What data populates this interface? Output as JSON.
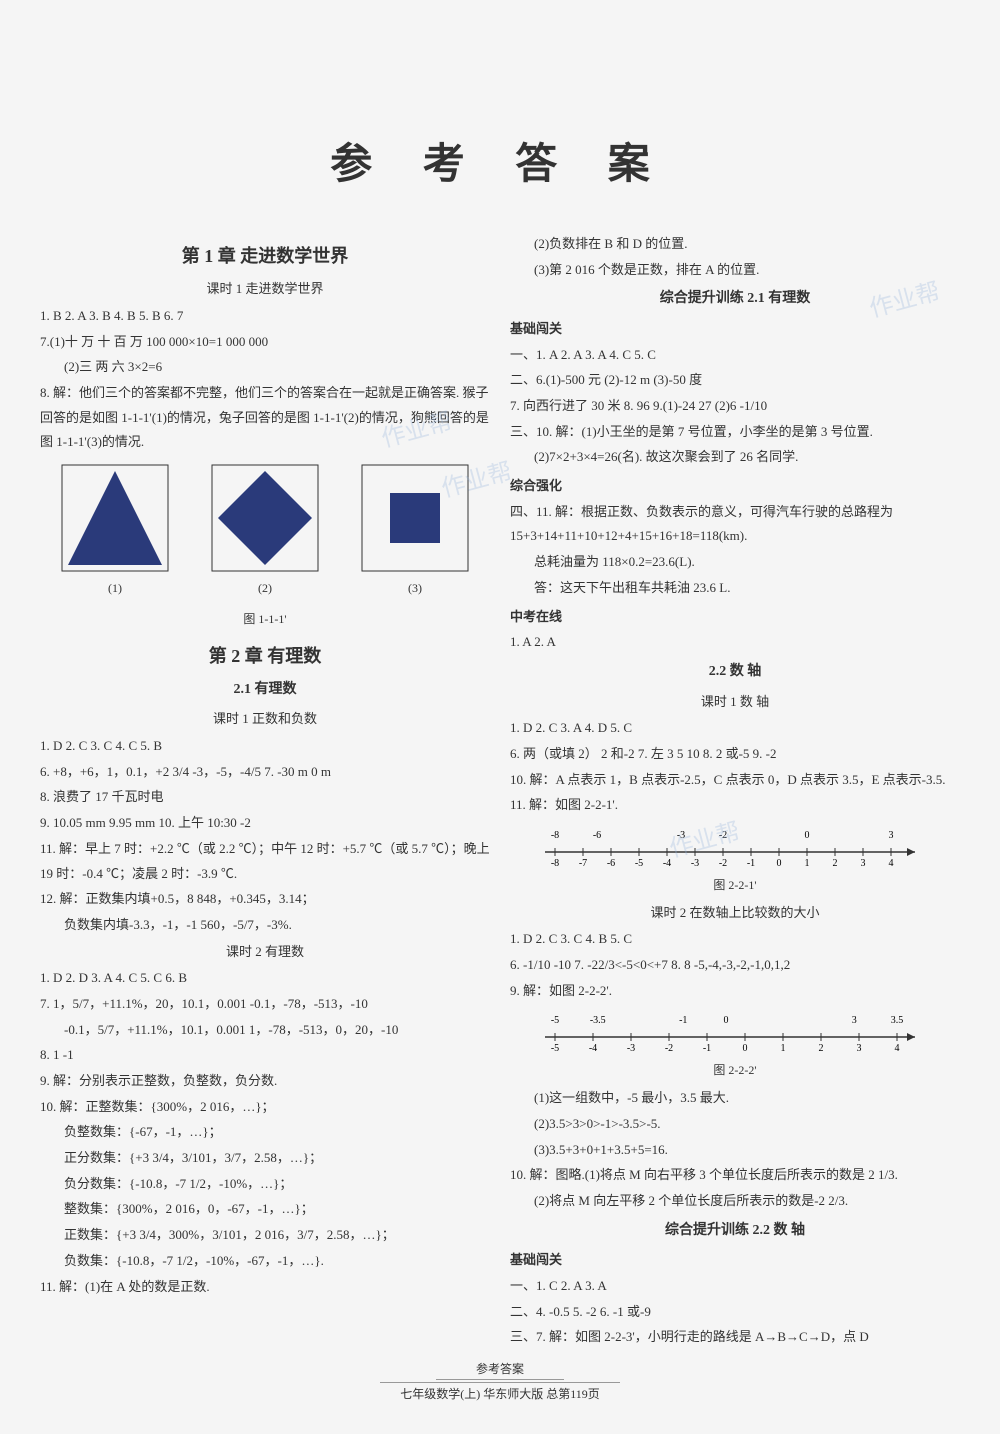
{
  "mainTitle": "参 考 答 案",
  "left": {
    "chapter1": {
      "title": "第 1 章  走进数学世界",
      "lesson": "课时 1  走进数学世界",
      "lines": [
        "1. B  2. A  3. B  4. B  5. B  6. 7",
        "7.(1)十  万  十  百  万  100 000×10=1 000 000",
        "(2)三  两  六  3×2=6",
        "8. 解：他们三个的答案都不完整，他们三个的答案合在一起就是正确答案. 猴子回答的是如图 1-1-1'(1)的情况，兔子回答的是图 1-1-1'(2)的情况，狗熊回答的是图 1-1-1'(3)的情况."
      ],
      "figLabels": [
        "(1)",
        "(2)",
        "(3)"
      ],
      "figCaption": "图 1-1-1'"
    },
    "chapter2": {
      "title": "第 2 章  有理数",
      "section21": "2.1  有理数",
      "lesson1": {
        "title": "课时 1  正数和负数",
        "lines": [
          "1. D  2. C  3. C  4. C  5. B",
          "6. +8，+6，1，0.1，+2 3/4  -3，-5，-4/5  7. -30 m  0 m",
          "8. 浪费了 17 千瓦时电",
          "9. 10.05 mm  9.95 mm  10. 上午 10:30  -2",
          "11. 解：早上 7 时：+2.2 ℃（或 2.2 ℃）；中午 12 时：+5.7 ℃（或 5.7 ℃）；晚上 19 时：-0.4 ℃；凌晨 2 时：-3.9 ℃.",
          "12. 解：正数集内填+0.5，8 848，+0.345，3.14；",
          "负数集内填-3.3，-1，-1 560，-5/7，-3%."
        ]
      },
      "lesson2": {
        "title": "课时 2  有理数",
        "lines": [
          "1. D  2. D  3. A  4. C  5. C  6. B",
          "7. 1，5/7，+11.1%，20，10.1，0.001  -0.1，-78，-513，-10",
          "-0.1，5/7，+11.1%，10.1，0.001  1，-78，-513，0，20，-10",
          "8. 1  -1",
          "9. 解：分别表示正整数，负整数，负分数.",
          "10. 解：正整数集：{300%，2 016，…}；",
          "负整数集：{-67，-1，…}；",
          "正分数集：{+3 3/4，3/101，3/7，2.58，…}；",
          "负分数集：{-10.8，-7 1/2，-10%，…}；",
          "整数集：{300%，2 016，0，-67，-1，…}；",
          "正数集：{+3 3/4，300%，3/101，2 016，3/7，2.58，…}；",
          "负数集：{-10.8，-7 1/2，-10%，-67，-1，…}.",
          "11. 解：(1)在 A 处的数是正数."
        ]
      }
    }
  },
  "right": {
    "topLines": [
      "(2)负数排在 B 和 D 的位置.",
      "(3)第 2 016 个数是正数，排在 A 的位置."
    ],
    "comp21": {
      "title": "综合提升训练  2.1 有理数",
      "h1": "基础闯关",
      "lines1": [
        "一、1. A  2. A  3. A  4. C  5. C",
        "二、6.(1)-500 元  (2)-12 m  (3)-50 度",
        "7. 向西行进了 30 米  8. 96  9.(1)-24  27  (2)6  -1/10",
        "三、10. 解：(1)小王坐的是第 7 号位置，小李坐的是第 3 号位置.",
        "(2)7×2+3×4=26(名). 故这次聚会到了 26 名同学."
      ],
      "h2": "综合强化",
      "lines2": [
        "四、11. 解：根据正数、负数表示的意义，可得汽车行驶的总路程为 15+3+14+11+10+12+4+15+16+18=118(km).",
        "总耗油量为 118×0.2=23.6(L).",
        "答：这天下午出租车共耗油 23.6 L."
      ],
      "h3": "中考在线",
      "lines3": [
        "1. A  2. A"
      ]
    },
    "section22": {
      "title": "2.2  数  轴",
      "lesson1": {
        "title": "课时 1  数  轴",
        "lines": [
          "1. D  2. C  3. A  4. D  5. C",
          "6. 两（或填 2）  2 和-2  7. 左  3  5  10  8. 2 或-5  9. -2",
          "10. 解：A 点表示 1，B 点表示-2.5，C 点表示 0，D 点表示 3.5，E 点表示-3.5.",
          "11. 解：如图 2-2-1'."
        ],
        "figCaption": "图 2-2-1'",
        "nlTop": [
          "-8",
          "-6",
          "",
          "-3",
          "-2",
          "",
          "0",
          "",
          "3"
        ],
        "nlBottom": [
          "-8",
          "-7",
          "-6",
          "-5",
          "-4",
          "-3",
          "-2",
          "-1",
          "0",
          "1",
          "2",
          "3",
          "4"
        ]
      },
      "lesson2": {
        "title": "课时 2  在数轴上比较数的大小",
        "lines": [
          "1. D  2. C  3. C  4. B  5. C",
          "6. -1/10  -10  7. -22/3<-5<0<+7  8. 8  -5,-4,-3,-2,-1,0,1,2",
          "9. 解：如图 2-2-2'."
        ],
        "nlTop": [
          "-5",
          "-3.5",
          "",
          "-1",
          "0",
          "",
          "",
          "3",
          "3.5"
        ],
        "nlBottom": [
          "-5",
          "-4",
          "-3",
          "-2",
          "-1",
          "0",
          "1",
          "2",
          "3",
          "4"
        ],
        "figCaption": "图 2-2-2'",
        "lines2": [
          "(1)这一组数中，-5 最小，3.5 最大.",
          "(2)3.5>3>0>-1>-3.5>-5.",
          "(3)3.5+3+0+1+3.5+5=16.",
          "10. 解：图略.(1)将点 M 向右平移 3 个单位长度后所表示的数是 2 1/3.",
          "(2)将点 M 向左平移 2 个单位长度后所表示的数是-2 2/3."
        ]
      }
    },
    "comp22": {
      "title": "综合提升训练  2.2 数  轴",
      "h1": "基础闯关",
      "lines": [
        "一、1. C  2. A  3. A",
        "二、4. -0.5  5. -2  6. -1 或-9",
        "三、7. 解：如图 2-2-3'，小明行走的路线是 A→B→C→D，点 D"
      ]
    }
  },
  "footer": {
    "line1": "参考答案",
    "line2": "七年级数学(上)  华东师大版  总第119页"
  },
  "watermark": "作业帮"
}
